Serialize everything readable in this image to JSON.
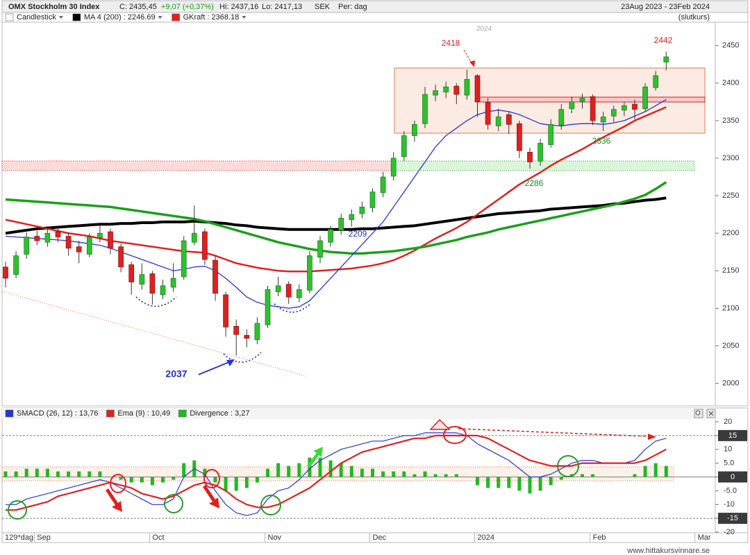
{
  "header": {
    "title": "OMX Stockholm 30 Index",
    "close": "C: 2435,45",
    "change": "+9,07 (+0,37%)",
    "high": "Hi: 2437,16",
    "low": "Lo: 2417,13",
    "currency": "SEK",
    "period": "Per: dag",
    "range": "23Aug 2023 - 23Feb 2024",
    "price_basis": "(slutkurs)",
    "year_marker": "2024",
    "bar_count": "129*dag",
    "footer": "www.hittakursvinnare.se"
  },
  "annotations": [
    {
      "text": "2418",
      "color": "#e02020"
    },
    {
      "text": "2442",
      "color": "#e02020"
    },
    {
      "text": "2336",
      "color": "#1a8a1a"
    },
    {
      "text": "2286",
      "color": "#1a8a1a"
    },
    {
      "text": "2209",
      "color": "#2030c0"
    },
    {
      "text": "2037",
      "color": "#2030c0"
    }
  ],
  "chart_data": [
    {
      "type": "candlestick",
      "categories": [
        null,
        null,
        null,
        "Sep",
        null,
        null,
        null,
        null,
        null,
        null,
        null,
        null,
        null,
        null,
        "Oct",
        null,
        null,
        null,
        null,
        null,
        null,
        null,
        null,
        null,
        null,
        "Nov",
        null,
        null,
        null,
        null,
        null,
        null,
        null,
        null,
        null,
        "Dec",
        null,
        null,
        null,
        null,
        null,
        null,
        null,
        null,
        null,
        "2024",
        null,
        null,
        null,
        null,
        null,
        null,
        null,
        null,
        null,
        null,
        "Feb",
        null,
        null,
        null,
        null,
        null,
        null,
        null,
        null,
        null,
        "Mar"
      ],
      "ylim": [
        1970,
        2483
      ],
      "yticks": [
        2000,
        2050,
        2100,
        2150,
        2200,
        2250,
        2300,
        2350,
        2400,
        2450
      ],
      "grid": false,
      "series": [
        {
          "name": "Candlestick",
          "color": "#ffffff",
          "up_color": "#2fc02f",
          "down_color": "#e02020",
          "open": [
            2155,
            2145,
            2172,
            2196,
            2188,
            2202,
            2196,
            2182,
            2172,
            2194,
            2202,
            2182,
            2158,
            2132,
            2146,
            2118,
            2128,
            2142,
            2188,
            2202,
            2164,
            2118,
            2076,
            2064,
            2058,
            2078,
            2122,
            2132,
            2114,
            2124,
            2168,
            2188,
            2204,
            2218,
            2226,
            2234,
            2254,
            2276,
            2302,
            2330,
            2346,
            2384,
            2388,
            2396,
            2384,
            2410,
            2374,
            2343,
            2358,
            2346,
            2308,
            2296,
            2318,
            2344,
            2366,
            2376,
            2382,
            2348,
            2356,
            2364,
            2372,
            2366,
            2394,
            2428,
            null,
            null,
            null
          ],
          "high": [
            2162,
            2176,
            2201,
            2203,
            2207,
            2208,
            2201,
            2190,
            2200,
            2210,
            2206,
            2186,
            2162,
            2160,
            2150,
            2138,
            2160,
            2196,
            2237,
            2206,
            2170,
            2122,
            2085,
            2072,
            2088,
            2130,
            2142,
            2136,
            2132,
            2176,
            2196,
            2210,
            2226,
            2232,
            2242,
            2260,
            2282,
            2308,
            2336,
            2350,
            2395,
            2398,
            2402,
            2400,
            2418,
            2412,
            2380,
            2366,
            2362,
            2350,
            2314,
            2326,
            2352,
            2372,
            2382,
            2386,
            2385,
            2362,
            2370,
            2375,
            2378,
            2400,
            2416,
            2442,
            null,
            null,
            null
          ],
          "low": [
            2128,
            2140,
            2166,
            2184,
            2182,
            2188,
            2170,
            2160,
            2168,
            2188,
            2172,
            2148,
            2118,
            2125,
            2105,
            2112,
            2122,
            2138,
            2184,
            2158,
            2110,
            2062,
            2037,
            2048,
            2052,
            2074,
            2116,
            2106,
            2108,
            2120,
            2160,
            2182,
            2198,
            2209,
            2220,
            2228,
            2248,
            2270,
            2296,
            2322,
            2340,
            2376,
            2380,
            2372,
            2378,
            2355,
            2338,
            2336,
            2332,
            2300,
            2286,
            2290,
            2314,
            2338,
            2360,
            2366,
            2344,
            2336,
            2348,
            2356,
            2352,
            2362,
            2390,
            2417,
            null,
            null,
            null
          ],
          "close": [
            2140,
            2170,
            2195,
            2190,
            2200,
            2195,
            2180,
            2175,
            2195,
            2200,
            2180,
            2155,
            2135,
            2145,
            2120,
            2130,
            2140,
            2190,
            2200,
            2165,
            2120,
            2075,
            2065,
            2060,
            2080,
            2125,
            2130,
            2115,
            2125,
            2170,
            2190,
            2205,
            2220,
            2225,
            2235,
            2255,
            2275,
            2300,
            2330,
            2345,
            2385,
            2390,
            2395,
            2385,
            2405,
            2375,
            2345,
            2355,
            2345,
            2310,
            2295,
            2320,
            2345,
            2365,
            2375,
            2380,
            2350,
            2355,
            2365,
            2370,
            2365,
            2395,
            2410,
            2435,
            null,
            null,
            null
          ]
        },
        {
          "name": "MA 4 (200) : 2246.69",
          "color": "#000000",
          "line_width": 4,
          "values": [
            2200,
            2202,
            2204,
            2206,
            2207,
            2208,
            2209,
            2210,
            2211,
            2212,
            2212,
            2213,
            2213,
            2214,
            2214,
            2215,
            2215,
            2215,
            2216,
            2215,
            2214,
            2213,
            2211,
            2210,
            2208,
            2207,
            2206,
            2205,
            2205,
            2205,
            2205,
            2205,
            2205,
            2205,
            2206,
            2206,
            2207,
            2208,
            2209,
            2210,
            2212,
            2214,
            2216,
            2218,
            2220,
            2222,
            2224,
            2226,
            2227,
            2228,
            2229,
            2230,
            2232,
            2233,
            2234,
            2235,
            2236,
            2237,
            2239,
            2240,
            2242,
            2244,
            2245,
            2247,
            null,
            null,
            null
          ]
        },
        {
          "name": "GKraft : 2368.18",
          "color": "#e02020",
          "line_width": 2.5,
          "values": [
            2218,
            2215,
            2212,
            2209,
            2206,
            2203,
            2200,
            2198,
            2196,
            2193,
            2190,
            2188,
            2186,
            2184,
            2182,
            2180,
            2178,
            2176,
            2175,
            2174,
            2170,
            2165,
            2160,
            2157,
            2154,
            2152,
            2150,
            2149,
            2149,
            2149,
            2150,
            2151,
            2152,
            2153,
            2155,
            2157,
            2160,
            2164,
            2170,
            2177,
            2185,
            2193,
            2200,
            2207,
            2215,
            2225,
            2235,
            2245,
            2255,
            2265,
            2273,
            2281,
            2290,
            2298,
            2305,
            2312,
            2320,
            2328,
            2335,
            2342,
            2350,
            2356,
            2362,
            2368,
            null,
            null,
            null
          ]
        },
        {
          "color": "#1aa01a",
          "line_width": 3.5,
          "values": [
            2245,
            2244,
            2243,
            2242,
            2241,
            2240,
            2239,
            2238,
            2237,
            2236,
            2235,
            2233,
            2231,
            2229,
            2227,
            2225,
            2223,
            2221,
            2219,
            2216,
            2212,
            2208,
            2204,
            2200,
            2196,
            2192,
            2188,
            2185,
            2182,
            2179,
            2177,
            2175,
            2174,
            2173,
            2173,
            2174,
            2175,
            2176,
            2178,
            2180,
            2182,
            2185,
            2188,
            2191,
            2195,
            2198,
            2201,
            2205,
            2208,
            2211,
            2214,
            2217,
            2220,
            2223,
            2226,
            2229,
            2232,
            2235,
            2238,
            2242,
            2246,
            2251,
            2259,
            2268,
            null,
            null,
            null
          ]
        },
        {
          "color": "#2535d0",
          "line_width": 1.3,
          "values": [
            2196,
            2195,
            2194,
            2193,
            2192,
            2191,
            2190,
            2188,
            2186,
            2184,
            2180,
            2175,
            2170,
            2165,
            2160,
            2155,
            2150,
            2152,
            2155,
            2156,
            2150,
            2140,
            2128,
            2115,
            2108,
            2104,
            2102,
            2100,
            2102,
            2110,
            2125,
            2140,
            2155,
            2170,
            2185,
            2200,
            2215,
            2235,
            2255,
            2275,
            2295,
            2315,
            2330,
            2340,
            2350,
            2358,
            2362,
            2364,
            2362,
            2358,
            2352,
            2346,
            2344,
            2343,
            2345,
            2346,
            2346,
            2345,
            2347,
            2350,
            2356,
            2362,
            2370,
            2378,
            null,
            null,
            null
          ]
        }
      ]
    },
    {
      "type": "combo",
      "ylim": [
        -20.75,
        21.25
      ],
      "yticks": [
        20,
        15,
        10,
        {
          "value": 5,
          "label": "5.0"
        },
        0,
        {
          "value": -5,
          "label": "-5.0"
        },
        -10,
        -15,
        -20
      ],
      "reference_lines": [
        15,
        0,
        -15
      ],
      "series": [
        {
          "name": "SMACD (26, 12) : 13,76",
          "color": "#2535d0",
          "kind": "line",
          "line_width": 1.2,
          "values": [
            -10,
            -10,
            -8,
            -7,
            -6,
            -5,
            -4,
            -3,
            -2,
            -1,
            -2,
            -4,
            -6,
            -8,
            -10,
            -10,
            -8,
            0,
            3,
            1,
            -5,
            -10,
            -13,
            -14,
            -13,
            -8,
            -5,
            -4,
            -1,
            3,
            6,
            8,
            10,
            11,
            12,
            13,
            13,
            14,
            15,
            15,
            16,
            16,
            16,
            16,
            15,
            12,
            10,
            8,
            6,
            3,
            0,
            0,
            1,
            3,
            5,
            6,
            6,
            5,
            5,
            5,
            6,
            10,
            13,
            14,
            null,
            null,
            null
          ]
        },
        {
          "name": "Ema (9) : 10,49",
          "color": "#e02020",
          "kind": "line",
          "line_width": 2.2,
          "values": [
            -12,
            -12,
            -11,
            -10,
            -9,
            -7,
            -6,
            -5,
            -4,
            -3,
            -2,
            -3,
            -4,
            -6,
            -7,
            -8,
            -7,
            -5,
            -3,
            -2,
            -3,
            -5,
            -8,
            -10,
            -11,
            -11,
            -10,
            -8,
            -6,
            -4,
            -1,
            2,
            5,
            7,
            9,
            10,
            11,
            12,
            13,
            14,
            14,
            15,
            15,
            15,
            15,
            15,
            14,
            12,
            10,
            8,
            6,
            5,
            4,
            4,
            4,
            5,
            5,
            5,
            5,
            5,
            5,
            6,
            8,
            10,
            null,
            null,
            null
          ]
        },
        {
          "name": "Divergence : 3,27",
          "color": "#22b822",
          "kind": "bar",
          "values": [
            2,
            2,
            3,
            3,
            3,
            2,
            2,
            2,
            2,
            2,
            0,
            -1,
            -2,
            -2,
            -3,
            -2,
            -1,
            5,
            6,
            3,
            -2,
            -5,
            -5,
            -4,
            -2,
            3,
            5,
            4,
            5,
            7,
            7,
            6,
            5,
            4,
            3,
            3,
            2,
            2,
            2,
            1,
            2,
            1,
            1,
            1,
            0,
            -3,
            -4,
            -4,
            -4,
            -5,
            -6,
            -5,
            -3,
            -1,
            1,
            1,
            1,
            0,
            0,
            0,
            1,
            4,
            5,
            4,
            null,
            null,
            null
          ]
        }
      ]
    }
  ]
}
